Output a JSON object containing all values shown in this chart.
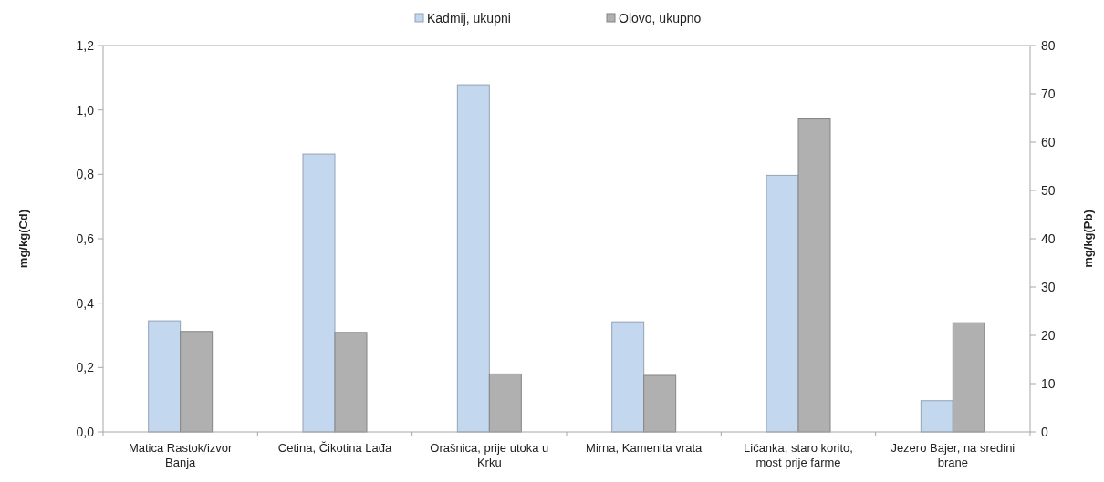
{
  "chart_data": {
    "type": "bar",
    "categories": [
      "Matica Rastok/izvor Banja",
      "Cetina, Čikotina Lađa",
      "Orašnica, prije utoka u Krku",
      "Mirna, Kamenita vrata",
      "Ličanka, staro korito, most prije farme",
      "Jezero Bajer, na sredini brane"
    ],
    "series": [
      {
        "name": "Kadmij, ukupni",
        "color": "#c3d7ef",
        "values": [
          0.345,
          0.863,
          1.078,
          0.342,
          0.797,
          0.097
        ]
      },
      {
        "name": "Olovo, ukupno",
        "color": "#b0b0b0",
        "axis": "y2",
        "values": [
          20.8,
          20.6,
          12.0,
          11.7,
          64.8,
          22.6
        ]
      }
    ],
    "ylabel": "mg/kg(Cd)",
    "y2label": "mg/kg(Pb)",
    "ylim": [
      0,
      1.2
    ],
    "yticks": [
      {
        "value": 0,
        "label": "0,0"
      },
      {
        "value": 0.2,
        "label": "0,2"
      },
      {
        "value": 0.4,
        "label": "0,4"
      },
      {
        "value": 0.6,
        "label": "0,6"
      },
      {
        "value": 0.8,
        "label": "0,8"
      },
      {
        "value": 1.0,
        "label": "1,0"
      },
      {
        "value": 1.2,
        "label": "1,2"
      }
    ],
    "y2lim": [
      0,
      80
    ],
    "y2ticks": [
      0,
      10,
      20,
      30,
      40,
      50,
      60,
      70,
      80
    ],
    "legend": "top",
    "grid": false
  }
}
